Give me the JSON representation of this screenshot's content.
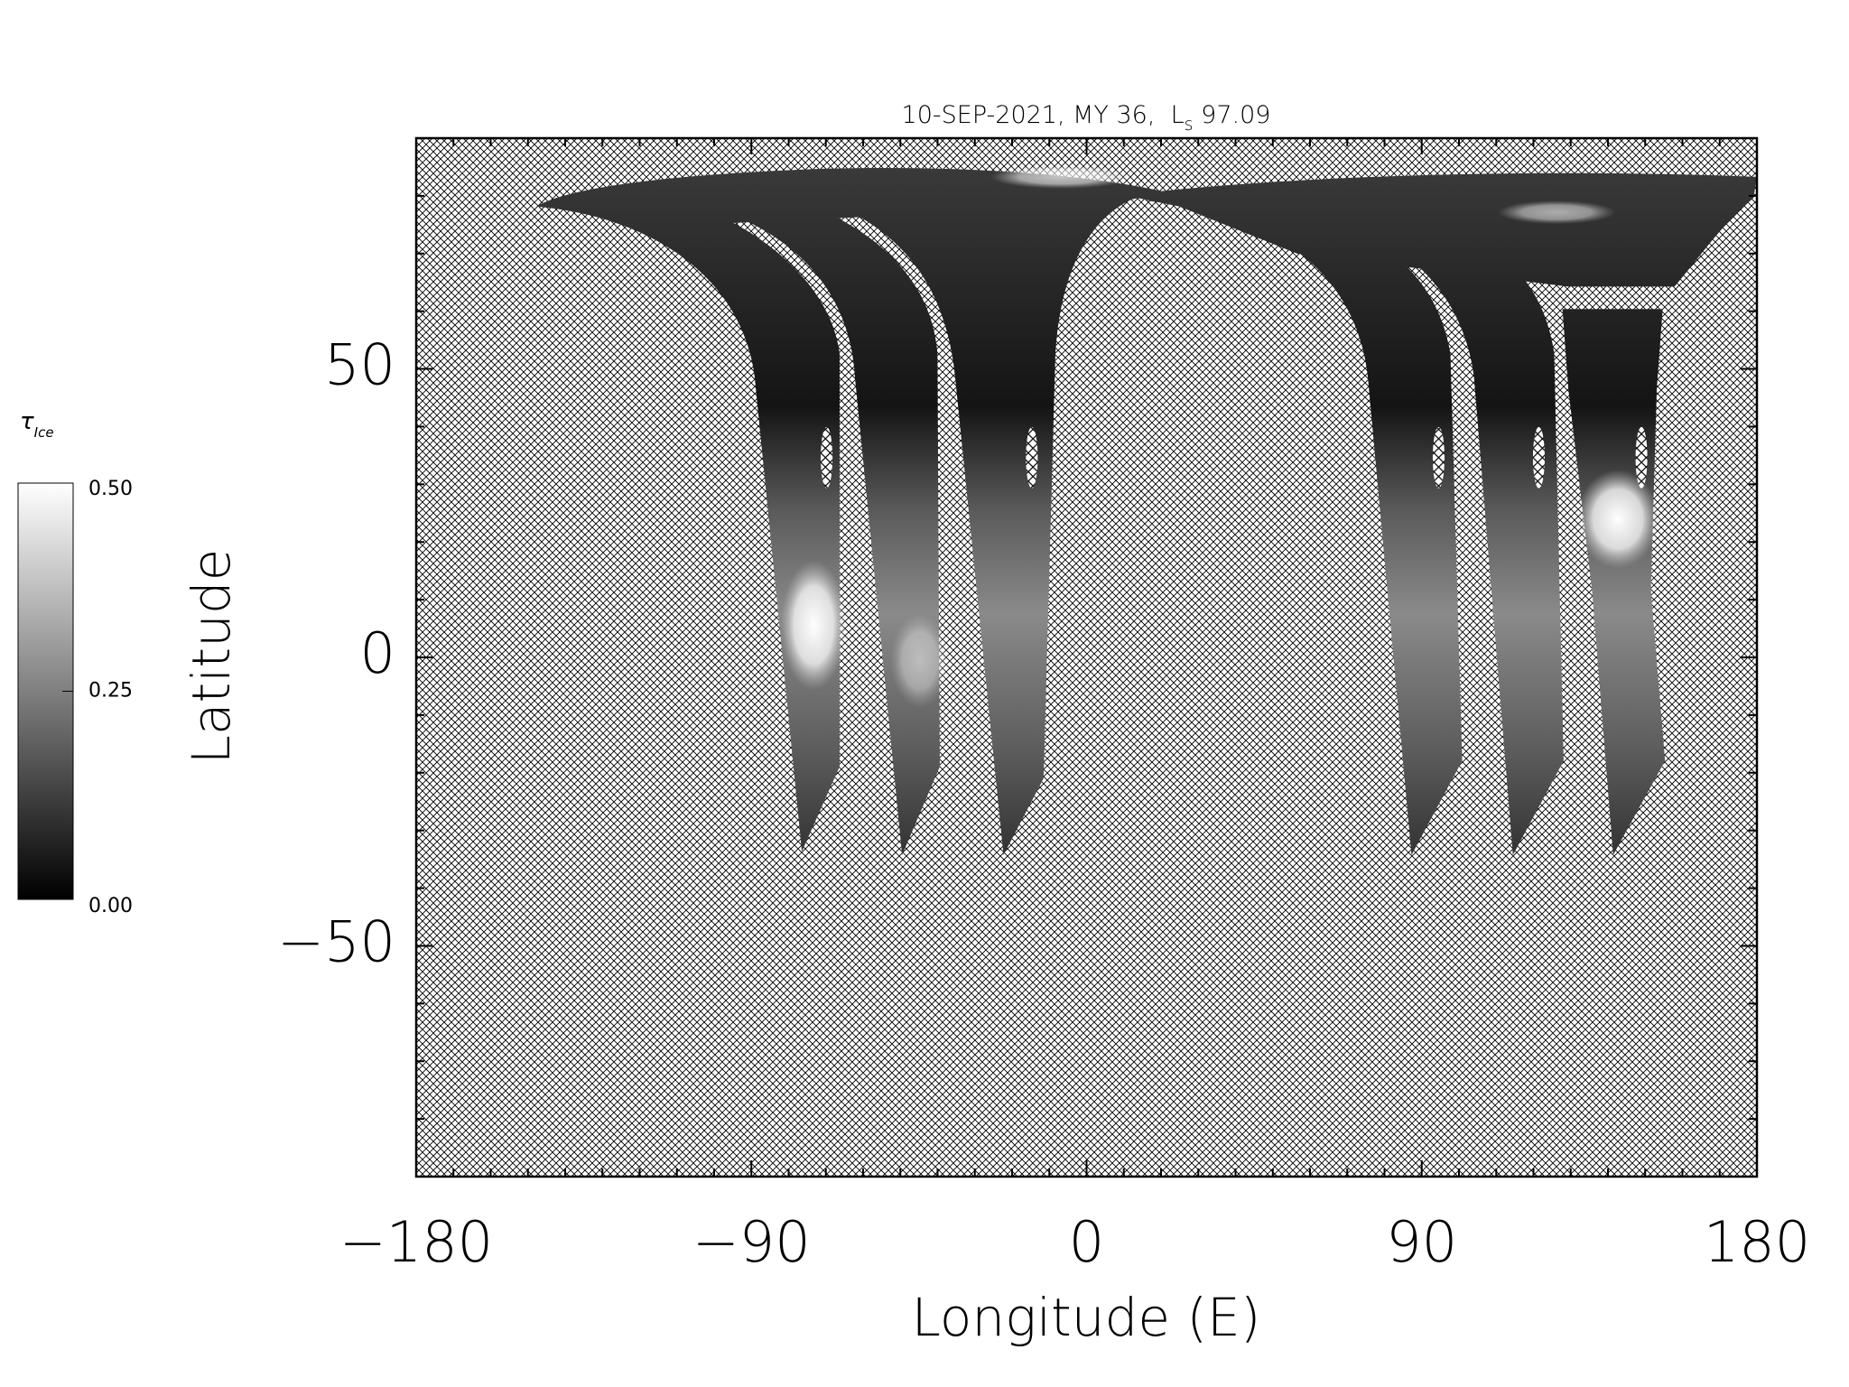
{
  "chart_data": {
    "type": "map",
    "title_parts": [
      "10-SEP-2021, MY 36,  L",
      "s",
      " 97.09"
    ],
    "x_label": "Longitude (E)",
    "y_label": "Latitude",
    "xlim": [
      -180,
      180
    ],
    "xticks": [
      {
        "value": -180,
        "label": "−180"
      },
      {
        "value": -90,
        "label": "−90"
      },
      0,
      90,
      180
    ],
    "xminorticks": [
      -170,
      -160,
      -150,
      -140,
      -130,
      -120,
      -110,
      -100,
      -80,
      -70,
      -60,
      -50,
      -40,
      -30,
      -20,
      -10,
      10,
      20,
      30,
      40,
      50,
      60,
      70,
      80,
      100,
      110,
      120,
      130,
      140,
      150,
      160,
      170
    ],
    "ylim": [
      -90,
      90
    ],
    "yticks": [
      {
        "value": -50,
        "label": "−50"
      },
      0,
      50
    ],
    "yminorticks": [
      -80,
      -70,
      -60,
      -40,
      -30,
      -20,
      -10,
      10,
      20,
      30,
      40,
      60,
      70,
      80
    ],
    "colorbar": {
      "label": "τ",
      "label_subscript": "Ice",
      "lim": [
        0,
        0.5
      ],
      "ticks": [
        {
          "value": 0,
          "label": "0.00"
        },
        {
          "value": 0.25,
          "label": "0.25"
        },
        {
          "value": 0.5,
          "label": "0.50"
        }
      ]
    }
  }
}
